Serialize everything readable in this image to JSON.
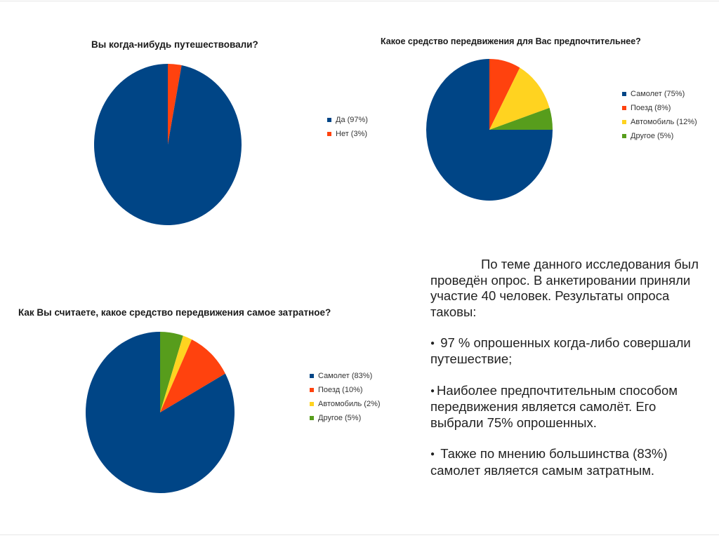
{
  "colors": {
    "blue": "#004586",
    "orange": "#ff420e",
    "yellow": "#ffd320",
    "green": "#579d1c"
  },
  "chart_data": [
    {
      "type": "pie",
      "title": "Вы когда-нибудь путешествовали?",
      "slices": [
        {
          "label": "Да (97%)",
          "value": 97,
          "color": "#004586"
        },
        {
          "label": "Нет (3%)",
          "value": 3,
          "color": "#ff420e"
        }
      ]
    },
    {
      "type": "pie",
      "title": "Какое средство передвижения для Вас предпочтительнее?",
      "slices": [
        {
          "label": "Самолет (75%)",
          "value": 75,
          "color": "#004586"
        },
        {
          "label": "Поезд (8%)",
          "value": 8,
          "color": "#ff420e"
        },
        {
          "label": "Автомобиль (12%)",
          "value": 12,
          "color": "#ffd320"
        },
        {
          "label": "Другое (5%)",
          "value": 5,
          "color": "#579d1c"
        }
      ]
    },
    {
      "type": "pie",
      "title": "Как Вы считаете, какое средство передвижения самое затратное?",
      "slices": [
        {
          "label": "Самолет (83%)",
          "value": 83,
          "color": "#004586"
        },
        {
          "label": "Поезд (10%)",
          "value": 10,
          "color": "#ff420e"
        },
        {
          "label": "Автомобиль (2%)",
          "value": 2,
          "color": "#ffd320"
        },
        {
          "label": "Другое (5%)",
          "value": 5,
          "color": "#579d1c"
        }
      ]
    }
  ],
  "summary": {
    "intro": "По теме данного исследования был проведён опрос. В анкетировании приняли участие 40 человек. Результаты опроса таковы:",
    "bullets": [
      "97 % опрошенных когда-либо совершали путешествие;",
      "Наиболее предпочтительным способом передвижения является самолёт. Его выбрали 75% опрошенных.",
      "Также по мнению большинства (83%) самолет является самым затратным."
    ]
  }
}
